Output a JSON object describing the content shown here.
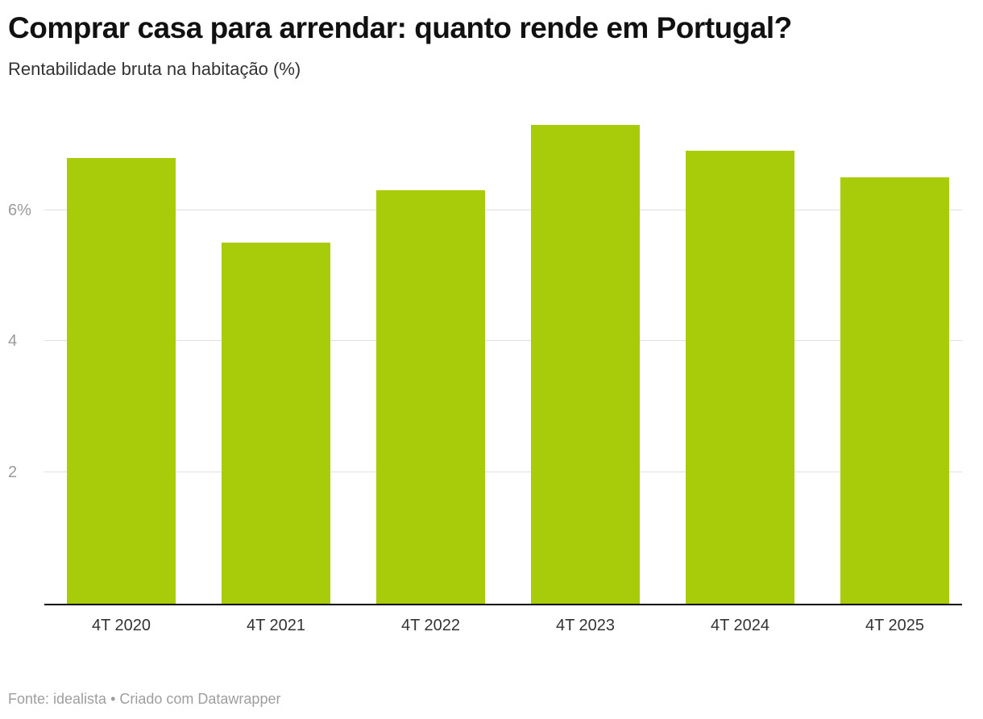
{
  "header": {
    "title": "Comprar casa para arrendar: quanto rende em Portugal?",
    "subtitle": "Rentabilidade bruta na habitação (%)"
  },
  "chart_data": {
    "type": "bar",
    "categories": [
      "4T 2020",
      "4T 2021",
      "4T 2022",
      "4T 2023",
      "4T 2024",
      "4T 2025"
    ],
    "values": [
      6.8,
      5.5,
      6.3,
      7.3,
      6.9,
      6.5
    ],
    "title": "Comprar casa para arrendar: quanto rende em Portugal?",
    "subtitle": "Rentabilidade bruta na habitação (%)",
    "xlabel": "",
    "ylabel": "",
    "ylim": [
      0,
      7.6
    ],
    "yticks": [
      {
        "value": 2,
        "label": "2"
      },
      {
        "value": 4,
        "label": "4"
      },
      {
        "value": 6,
        "label": "6%"
      }
    ],
    "grid": true,
    "legend": false,
    "bar_color": "#a8cc0a",
    "gridline_color": "#e0e0e0",
    "axis_color": "#000000"
  },
  "footer": {
    "credit": "Fonte: idealista • Criado com Datawrapper"
  }
}
